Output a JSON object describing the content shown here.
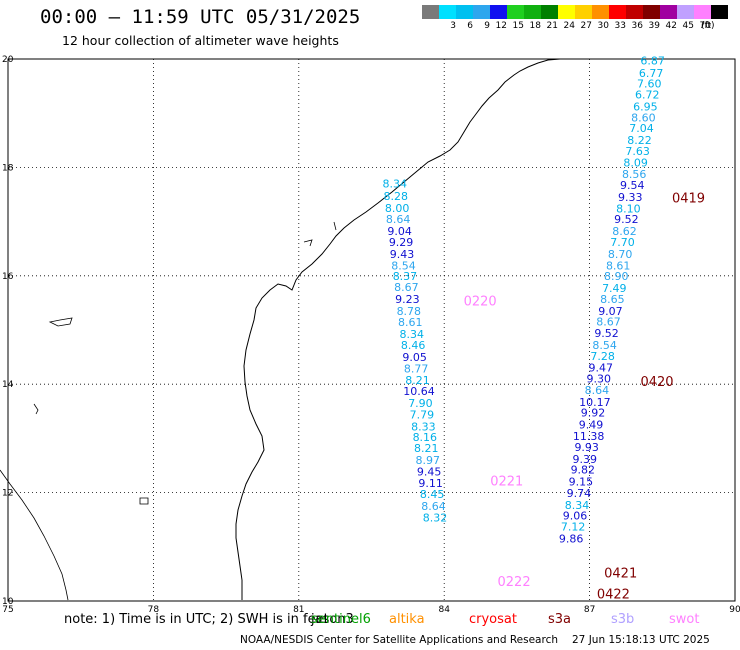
{
  "header": {
    "title": "00:00 – 11:59 UTC 05/31/2025",
    "subtitle": "12 hour collection of altimeter wave heights"
  },
  "colorbar": {
    "unit": "(ft)",
    "entries": [
      {
        "label": "",
        "color": "#7a7a7a"
      },
      {
        "label": "3",
        "color": "#00e0ff"
      },
      {
        "label": "6",
        "color": "#00c0f0"
      },
      {
        "label": "9",
        "color": "#2ea6ee"
      },
      {
        "label": "12",
        "color": "#1010f0"
      },
      {
        "label": "15",
        "color": "#20d020"
      },
      {
        "label": "18",
        "color": "#10b010"
      },
      {
        "label": "21",
        "color": "#008000"
      },
      {
        "label": "24",
        "color": "#ffff00"
      },
      {
        "label": "27",
        "color": "#ffd000"
      },
      {
        "label": "30",
        "color": "#ff9000"
      },
      {
        "label": "33",
        "color": "#ff0000"
      },
      {
        "label": "36",
        "color": "#c00000"
      },
      {
        "label": "39",
        "color": "#800000"
      },
      {
        "label": "42",
        "color": "#a000a0"
      },
      {
        "label": "45",
        "color": "#c0a0ff"
      },
      {
        "label": "70",
        "color": "#ff80ff"
      },
      {
        "label": "",
        "color": "#000000"
      }
    ]
  },
  "map": {
    "lon_range": [
      75,
      90
    ],
    "lat_range": [
      10,
      20
    ],
    "lon_ticks": [
      "75",
      "78",
      "81",
      "84",
      "87",
      "90"
    ],
    "lat_ticks": [
      "10",
      "12",
      "14",
      "16",
      "18",
      "20"
    ]
  },
  "tracks": [
    {
      "id": "0419",
      "sat": "s3a",
      "label_lat": 17.35,
      "label_lon": 88.7,
      "points": [
        {
          "v": "6.87",
          "lat": 19.9,
          "lon": 88.3
        },
        {
          "v": "6.77",
          "lat": 19.67,
          "lon": 88.27
        },
        {
          "v": "7.60",
          "lat": 19.47,
          "lon": 88.23
        },
        {
          "v": "6.72",
          "lat": 19.27,
          "lon": 88.19
        },
        {
          "v": "6.95",
          "lat": 19.05,
          "lon": 88.15
        },
        {
          "v": "8.60",
          "lat": 18.85,
          "lon": 88.11
        },
        {
          "v": "7.04",
          "lat": 18.65,
          "lon": 88.07
        },
        {
          "v": "8.22",
          "lat": 18.43,
          "lon": 88.03
        },
        {
          "v": "7.63",
          "lat": 18.23,
          "lon": 87.99
        },
        {
          "v": "8.09",
          "lat": 18.02,
          "lon": 87.95
        },
        {
          "v": "8.56",
          "lat": 17.8,
          "lon": 87.92
        },
        {
          "v": "9.54",
          "lat": 17.6,
          "lon": 87.88
        },
        {
          "v": "9.33",
          "lat": 17.38,
          "lon": 87.84
        },
        {
          "v": "8.10",
          "lat": 17.17,
          "lon": 87.8
        },
        {
          "v": "9.52",
          "lat": 16.97,
          "lon": 87.76
        },
        {
          "v": "8.62",
          "lat": 16.75,
          "lon": 87.72
        },
        {
          "v": "7.70",
          "lat": 16.55,
          "lon": 87.68
        }
      ]
    },
    {
      "id": "0420",
      "sat": "s3a",
      "label_lat": 13.97,
      "label_lon": 88.05,
      "points": [
        {
          "v": "8.70",
          "lat": 16.33,
          "lon": 87.63
        },
        {
          "v": "8.61",
          "lat": 16.12,
          "lon": 87.59
        },
        {
          "v": "8.90",
          "lat": 15.92,
          "lon": 87.55
        },
        {
          "v": "7.49",
          "lat": 15.7,
          "lon": 87.51
        },
        {
          "v": "8.65",
          "lat": 15.5,
          "lon": 87.47
        },
        {
          "v": "9.07",
          "lat": 15.28,
          "lon": 87.43
        },
        {
          "v": "8.67",
          "lat": 15.08,
          "lon": 87.39
        },
        {
          "v": "9.52",
          "lat": 14.87,
          "lon": 87.35
        },
        {
          "v": "8.54",
          "lat": 14.65,
          "lon": 87.31
        },
        {
          "v": "7.28",
          "lat": 14.45,
          "lon": 87.27
        },
        {
          "v": "9.47",
          "lat": 14.23,
          "lon": 87.23
        },
        {
          "v": "9.30",
          "lat": 14.03,
          "lon": 87.19
        },
        {
          "v": "8.64",
          "lat": 13.82,
          "lon": 87.15
        },
        {
          "v": "10.17",
          "lat": 13.6,
          "lon": 87.11
        },
        {
          "v": "9.92",
          "lat": 13.4,
          "lon": 87.07
        },
        {
          "v": "9.49",
          "lat": 13.18,
          "lon": 87.03
        }
      ]
    },
    {
      "id": "0421",
      "sat": "s3a",
      "label_lat": 10.43,
      "label_lon": 87.3,
      "points": [
        {
          "v": "11.38",
          "lat": 12.97,
          "lon": 86.98
        },
        {
          "v": "9.93",
          "lat": 12.77,
          "lon": 86.94
        },
        {
          "v": "9.39",
          "lat": 12.55,
          "lon": 86.9
        },
        {
          "v": "9.82",
          "lat": 12.35,
          "lon": 86.86
        },
        {
          "v": "9.15",
          "lat": 12.13,
          "lon": 86.82
        },
        {
          "v": "9.74",
          "lat": 11.92,
          "lon": 86.78
        },
        {
          "v": "8.34",
          "lat": 11.7,
          "lon": 86.74
        },
        {
          "v": "9.06",
          "lat": 11.5,
          "lon": 86.7
        },
        {
          "v": "7.12",
          "lat": 11.3,
          "lon": 86.66
        },
        {
          "v": "9.86",
          "lat": 11.08,
          "lon": 86.62
        }
      ]
    },
    {
      "id": "0422",
      "sat": "s3a",
      "label_lat": 10.05,
      "label_lon": 87.15,
      "points": []
    },
    {
      "id": "0220",
      "sat": "swot",
      "label_lat": 15.45,
      "label_lon": 84.4,
      "points": [
        {
          "v": "8.34",
          "lat": 17.63,
          "lon": 82.98
        },
        {
          "v": "8.28",
          "lat": 17.4,
          "lon": 83.0
        },
        {
          "v": "8.00",
          "lat": 17.18,
          "lon": 83.03
        },
        {
          "v": "8.64",
          "lat": 16.97,
          "lon": 83.05
        },
        {
          "v": "9.04",
          "lat": 16.75,
          "lon": 83.08
        },
        {
          "v": "9.29",
          "lat": 16.55,
          "lon": 83.11
        },
        {
          "v": "9.43",
          "lat": 16.33,
          "lon": 83.13
        },
        {
          "v": "8.54",
          "lat": 16.12,
          "lon": 83.16
        },
        {
          "v": "8.37",
          "lat": 15.92,
          "lon": 83.19
        },
        {
          "v": "8.67",
          "lat": 15.72,
          "lon": 83.22
        }
      ]
    },
    {
      "id": "0221",
      "sat": "swot",
      "label_lat": 12.13,
      "label_lon": 84.95,
      "points": [
        {
          "v": "9.23",
          "lat": 15.5,
          "lon": 83.24
        },
        {
          "v": "8.78",
          "lat": 15.28,
          "lon": 83.27
        },
        {
          "v": "8.61",
          "lat": 15.07,
          "lon": 83.3
        },
        {
          "v": "8.34",
          "lat": 14.85,
          "lon": 83.33
        },
        {
          "v": "8.46",
          "lat": 14.65,
          "lon": 83.36
        },
        {
          "v": "9.05",
          "lat": 14.43,
          "lon": 83.39
        },
        {
          "v": "8.77",
          "lat": 14.22,
          "lon": 83.42
        },
        {
          "v": "8.21",
          "lat": 14.0,
          "lon": 83.45
        },
        {
          "v": "10.64",
          "lat": 13.8,
          "lon": 83.48
        },
        {
          "v": "7.90",
          "lat": 13.58,
          "lon": 83.51
        },
        {
          "v": "7.79",
          "lat": 13.37,
          "lon": 83.54
        },
        {
          "v": "8.33",
          "lat": 13.15,
          "lon": 83.57
        },
        {
          "v": "8.16",
          "lat": 12.95,
          "lon": 83.6
        }
      ]
    },
    {
      "id": "0222",
      "sat": "swot",
      "label_lat": 10.28,
      "label_lon": 85.1,
      "points": [
        {
          "v": "8.21",
          "lat": 12.75,
          "lon": 83.63
        },
        {
          "v": "8.97",
          "lat": 12.53,
          "lon": 83.66
        },
        {
          "v": "9.45",
          "lat": 12.32,
          "lon": 83.69
        },
        {
          "v": "9.11",
          "lat": 12.1,
          "lon": 83.72
        },
        {
          "v": "8.45",
          "lat": 11.9,
          "lon": 83.75
        },
        {
          "v": "8.64",
          "lat": 11.68,
          "lon": 83.78
        },
        {
          "v": "8.32",
          "lat": 11.47,
          "lon": 83.81
        }
      ]
    }
  ],
  "satellites": [
    {
      "name": "jason3",
      "color": "#000000"
    },
    {
      "name": "sentinel6",
      "color": "#00a000"
    },
    {
      "name": "altika",
      "color": "#ff9000"
    },
    {
      "name": "cryosat",
      "color": "#ff0000"
    },
    {
      "name": "s3a",
      "color": "#800000"
    },
    {
      "name": "s3b",
      "color": "#b0a0ff"
    },
    {
      "name": "swot",
      "color": "#ff80ff"
    }
  ],
  "footer": {
    "note": "note: 1) Time is in UTC; 2) SWH is in feet",
    "credit": "NOAA/NESDIS Center for Satellite Applications and Research",
    "timestamp": "27 Jun 15:18:13 UTC 2025"
  },
  "colors": {
    "grid": "#000000",
    "coast": "#000000",
    "wave_low": "#00b0e8",
    "wave_mid": "#2ea6ee",
    "wave_high": "#1010d0"
  }
}
